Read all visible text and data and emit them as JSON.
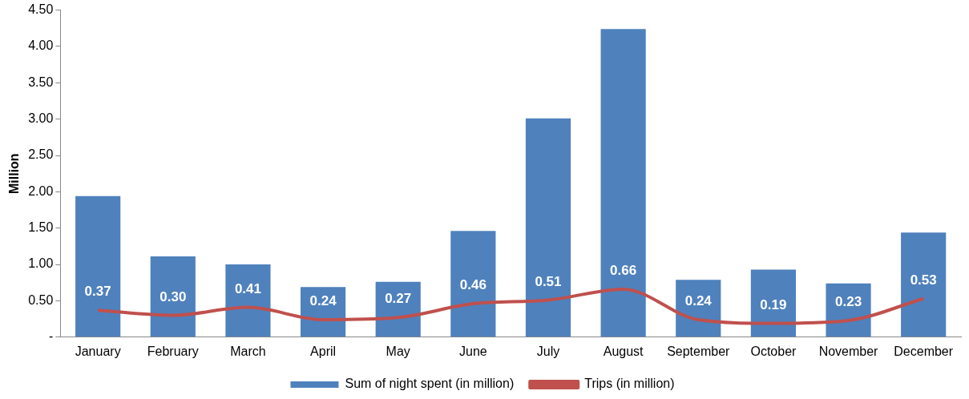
{
  "chart_data": {
    "type": "bar",
    "ylabel": "Million",
    "categories": [
      "January",
      "February",
      "March",
      "April",
      "May",
      "June",
      "July",
      "August",
      "September",
      "October",
      "November",
      "December"
    ],
    "series": [
      {
        "name": "Sum of night spent (in million)",
        "color": "#4f81bd",
        "values": [
          1.94,
          1.11,
          1.0,
          0.69,
          0.76,
          1.46,
          3.01,
          4.24,
          0.79,
          0.93,
          0.74,
          1.44
        ]
      },
      {
        "name": "Trips (in million)",
        "type": "line",
        "color": "#c0504d",
        "values": [
          0.37,
          0.3,
          0.41,
          0.24,
          0.27,
          0.46,
          0.51,
          0.66,
          0.24,
          0.19,
          0.23,
          0.53
        ],
        "value_labels": [
          "0.37",
          "0.30",
          "0.41",
          "0.24",
          "0.27",
          "0.46",
          "0.51",
          "0.66",
          "0.24",
          "0.19",
          "0.23",
          "0.53"
        ]
      }
    ],
    "ylim": [
      0,
      4.5
    ],
    "yticks": [
      {
        "value": 0,
        "label": "-"
      },
      {
        "value": 0.5,
        "label": "0.50"
      },
      {
        "value": 1,
        "label": "1.00"
      },
      {
        "value": 1.5,
        "label": "1.50"
      },
      {
        "value": 2,
        "label": "2.00"
      },
      {
        "value": 2.5,
        "label": "2.50"
      },
      {
        "value": 3,
        "label": "3.00"
      },
      {
        "value": 3.5,
        "label": "3.50"
      },
      {
        "value": 4,
        "label": "4.00"
      },
      {
        "value": 4.5,
        "label": "4.50"
      }
    ],
    "legend": "bottom",
    "marker": "none"
  }
}
